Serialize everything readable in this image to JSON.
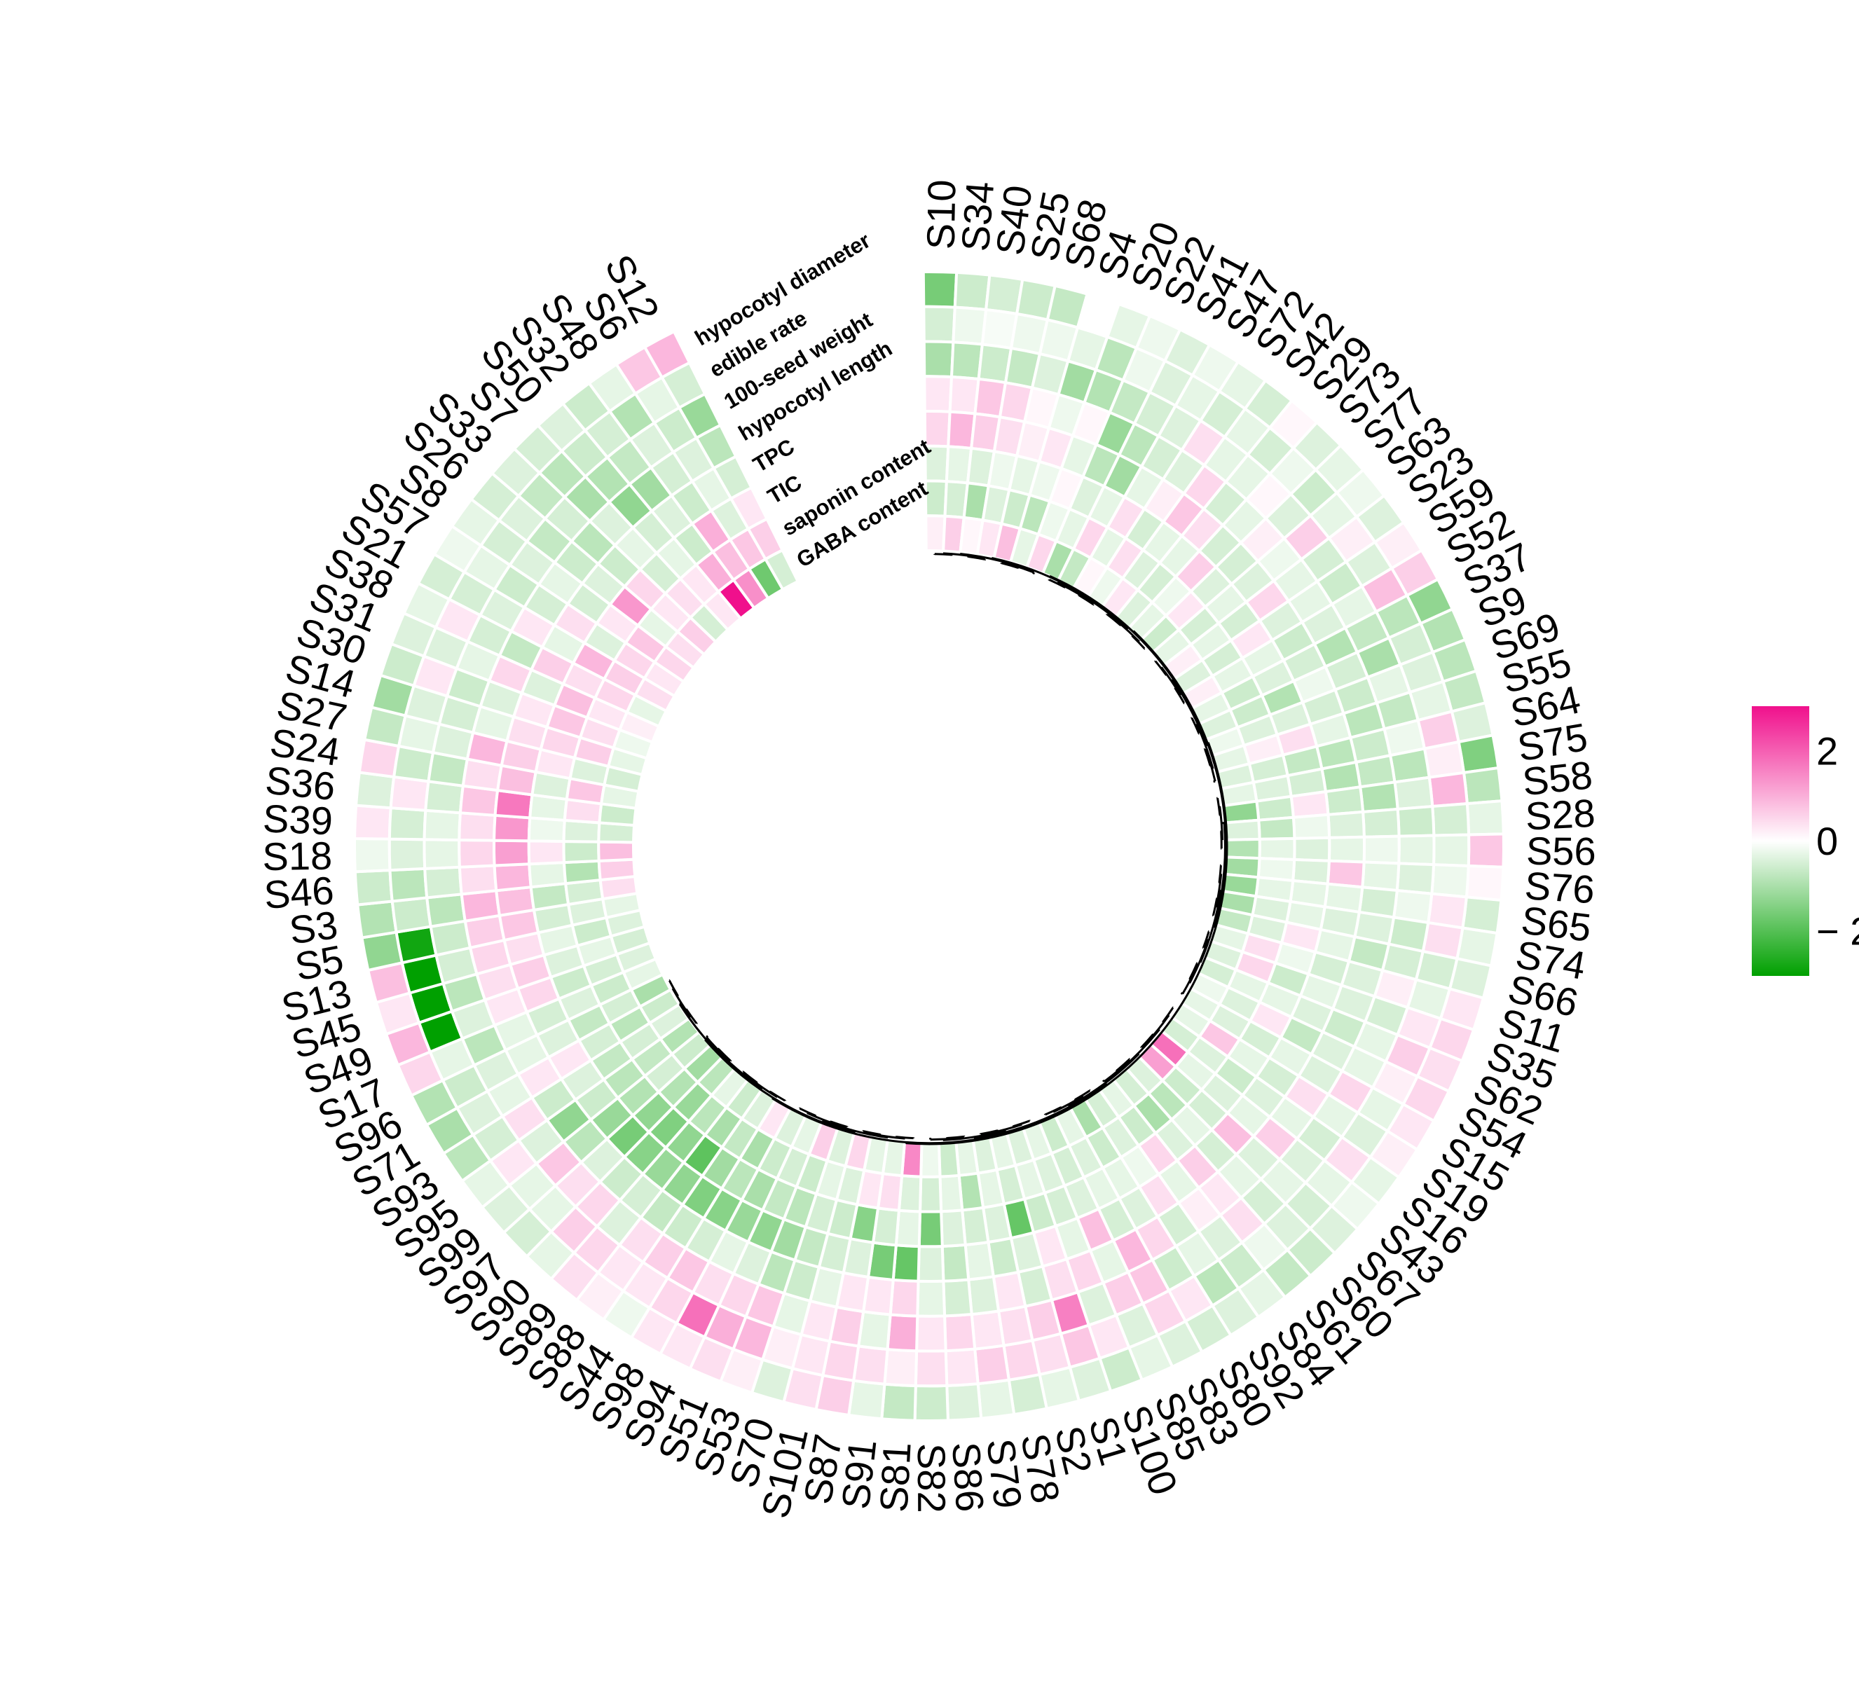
{
  "chart_data": {
    "type": "heatmap",
    "layout": "circular",
    "samples": [
      "S10",
      "S34",
      "S40",
      "S25",
      "S68",
      "S4",
      "S20",
      "S22",
      "S41",
      "S47",
      "S72",
      "S42",
      "S29",
      "S73",
      "S77",
      "S63",
      "S23",
      "S59",
      "S52",
      "S37",
      "S9",
      "S69",
      "S55",
      "S64",
      "S75",
      "S58",
      "S28",
      "S56",
      "S76",
      "S65",
      "S74",
      "S66",
      "S11",
      "S35",
      "S62",
      "S54",
      "S15",
      "S19",
      "S16",
      "S43",
      "S67",
      "S60",
      "S61",
      "S84",
      "S92",
      "S80",
      "S83",
      "S85",
      "S100",
      "S1",
      "S2",
      "S78",
      "S79",
      "S86",
      "S82",
      "S81",
      "S91",
      "S87",
      "S101",
      "S70",
      "S53",
      "S51",
      "S94",
      "S98",
      "S44",
      "S88",
      "S89",
      "S90",
      "S97",
      "S99",
      "S95",
      "S93",
      "S71",
      "S96",
      "S17",
      "S49",
      "S45",
      "S13",
      "S5",
      "S3",
      "S46",
      "S18",
      "S39",
      "S36",
      "S24",
      "S27",
      "S14",
      "S30",
      "S31",
      "S38",
      "S21",
      "S57",
      "S8",
      "S26",
      "S33",
      "S7",
      "S50",
      "S32",
      "S48",
      "S6",
      "S12"
    ],
    "traits": [
      "hypocotyl diameter",
      "edible rate",
      "100-seed weight",
      "hypocotyl length",
      "TPC",
      "TIC",
      "saponin content",
      "GABA content"
    ],
    "values": [
      [
        -1.6,
        -0.5,
        -1.0,
        0.3,
        0.5,
        -0.4,
        -0.6,
        0.2
      ],
      [
        -0.6,
        -0.2,
        -0.8,
        0.3,
        0.9,
        -0.3,
        -0.5,
        0.6
      ],
      [
        -0.5,
        -0.1,
        -0.6,
        0.7,
        0.6,
        -0.4,
        -1.0,
        0.1
      ],
      [
        -0.6,
        -0.2,
        -0.7,
        0.5,
        0.4,
        -0.2,
        -0.4,
        0.3
      ],
      [
        -0.7,
        -0.2,
        -0.4,
        0.1,
        0.2,
        -0.3,
        -0.6,
        0.8
      ],
      [
        0.0,
        -0.3,
        -1.1,
        -0.2,
        0.3,
        -0.2,
        -0.8,
        -0.3
      ],
      [
        -0.3,
        -0.8,
        -0.9,
        0.1,
        -0.3,
        0.1,
        -0.2,
        0.5
      ],
      [
        -0.2,
        -0.2,
        -0.7,
        -1.2,
        -0.8,
        -0.4,
        -0.3,
        -1.0
      ],
      [
        -0.4,
        -0.4,
        -0.5,
        -0.8,
        -1.1,
        -0.3,
        0.5,
        -0.7
      ],
      [
        -0.2,
        -0.3,
        -0.4,
        -0.5,
        -0.3,
        0.4,
        -0.3,
        0.1
      ],
      [
        -0.3,
        -0.5,
        0.4,
        -0.4,
        0.2,
        -0.5,
        0.4,
        -0.2
      ],
      [
        -0.5,
        -0.3,
        -0.3,
        0.5,
        0.7,
        -0.3,
        -0.4,
        0.3
      ],
      [
        0.1,
        -0.5,
        -0.3,
        -0.5,
        0.4,
        -0.3,
        -0.5,
        -0.4
      ],
      [
        -0.4,
        -0.2,
        0.1,
        -0.3,
        -0.5,
        0.6,
        -0.2,
        -0.3
      ],
      [
        -0.3,
        -0.6,
        -0.4,
        0.2,
        -0.5,
        -0.4,
        0.3,
        -0.6
      ],
      [
        -0.2,
        -0.3,
        0.6,
        -0.2,
        -0.4,
        -0.3,
        -0.5,
        -0.3
      ],
      [
        -0.4,
        0.2,
        -0.5,
        -0.3,
        0.5,
        -0.5,
        -0.3,
        0.2
      ],
      [
        0.2,
        -0.4,
        -0.6,
        -0.3,
        -0.4,
        0.3,
        -0.5,
        -0.4
      ],
      [
        0.6,
        0.8,
        -0.3,
        -0.4,
        -0.6,
        -0.3,
        -0.3,
        0.2
      ],
      [
        -1.3,
        -0.8,
        -0.7,
        -0.9,
        -0.5,
        -0.4,
        -0.6,
        -0.3
      ],
      [
        -0.9,
        -0.5,
        -1.0,
        -0.5,
        -0.2,
        -0.9,
        -0.6,
        -0.4
      ],
      [
        -0.8,
        -0.4,
        -0.3,
        -0.6,
        -0.5,
        -0.4,
        -0.4,
        -0.2
      ],
      [
        -0.7,
        -0.3,
        -0.7,
        -0.8,
        -0.3,
        0.4,
        0.2,
        -0.3
      ],
      [
        -0.4,
        0.6,
        -0.2,
        -0.6,
        -0.8,
        -0.7,
        -0.5,
        -0.4
      ],
      [
        -1.5,
        0.2,
        -0.8,
        -0.7,
        -0.9,
        -0.5,
        -0.4,
        -0.3
      ],
      [
        -0.8,
        0.9,
        -0.4,
        -0.9,
        -0.6,
        0.3,
        -0.6,
        -1.3
      ],
      [
        -0.3,
        -0.5,
        -0.6,
        -0.5,
        -0.4,
        -0.2,
        -0.7,
        -0.4
      ],
      [
        0.7,
        -0.3,
        -0.3,
        -0.2,
        -0.3,
        -0.4,
        -0.3,
        -0.9
      ],
      [
        0.1,
        -0.2,
        -0.4,
        -0.3,
        0.7,
        -0.4,
        -0.2,
        -1.1
      ],
      [
        -0.5,
        0.3,
        -0.2,
        -0.5,
        -0.3,
        -0.3,
        -0.3,
        -1.2
      ],
      [
        -0.3,
        0.4,
        -0.6,
        -0.4,
        -0.4,
        -0.3,
        -0.4,
        -1.0
      ],
      [
        -0.4,
        -0.5,
        -0.5,
        -0.7,
        -0.3,
        0.3,
        -0.4,
        -0.7
      ],
      [
        0.3,
        -0.3,
        0.2,
        -0.4,
        -0.5,
        -0.2,
        0.4,
        -0.3
      ],
      [
        0.5,
        0.3,
        -0.5,
        -0.4,
        -0.3,
        -0.6,
        0.5,
        -0.4
      ],
      [
        0.4,
        0.6,
        -0.3,
        -0.6,
        -0.4,
        -0.3,
        -0.3,
        -0.5
      ],
      [
        0.5,
        0.2,
        -0.3,
        -0.4,
        -0.7,
        0.3,
        -0.4,
        -0.2
      ],
      [
        0.3,
        -0.3,
        0.5,
        -0.4,
        -0.3,
        -0.5,
        -0.4,
        -0.3
      ],
      [
        0.2,
        -0.4,
        -0.3,
        0.4,
        -0.5,
        -0.3,
        0.7,
        -0.3
      ],
      [
        -0.3,
        0.4,
        -0.5,
        -0.3,
        -0.4,
        -0.6,
        -0.4,
        -0.5
      ],
      [
        -0.2,
        -0.3,
        -0.4,
        0.6,
        -0.3,
        -0.4,
        -0.3,
        1.8
      ],
      [
        -0.4,
        -0.5,
        -0.3,
        -0.4,
        0.8,
        -0.5,
        -0.6,
        1.2
      ],
      [
        -0.6,
        -0.4,
        -0.5,
        -0.3,
        -0.5,
        -0.3,
        -0.8,
        -0.4
      ],
      [
        -0.7,
        -0.2,
        0.4,
        0.3,
        0.6,
        -0.4,
        -1.0,
        -0.5
      ],
      [
        -0.3,
        -0.6,
        -0.4,
        0.2,
        -0.3,
        0.5,
        -0.6,
        -0.3
      ],
      [
        -0.4,
        -0.8,
        -0.3,
        -0.5,
        0.4,
        -0.2,
        -0.4,
        -0.5
      ],
      [
        -0.5,
        0.3,
        -0.6,
        0.5,
        -0.4,
        -0.3,
        -0.6,
        -1.0
      ],
      [
        -0.4,
        0.5,
        0.7,
        0.9,
        -0.5,
        -0.3,
        -0.4,
        -0.3
      ],
      [
        -0.3,
        -0.4,
        0.6,
        -0.3,
        0.8,
        -0.4,
        -0.5,
        -0.6
      ],
      [
        -0.6,
        0.3,
        -0.4,
        0.5,
        -0.3,
        -0.5,
        -0.4,
        -0.3
      ],
      [
        -0.4,
        0.7,
        1.6,
        0.4,
        0.3,
        -0.6,
        -0.3,
        -0.4
      ],
      [
        -0.3,
        0.4,
        0.6,
        -0.5,
        -0.4,
        -1.8,
        -0.5,
        -0.3
      ],
      [
        -0.5,
        0.5,
        0.4,
        0.3,
        -0.6,
        -0.4,
        -0.3,
        -0.4
      ],
      [
        -0.3,
        0.6,
        0.3,
        -0.4,
        -0.3,
        -0.5,
        -0.9,
        -0.3
      ],
      [
        -0.4,
        0.3,
        0.5,
        -0.5,
        -0.7,
        -0.4,
        -0.3,
        -0.6
      ],
      [
        -0.6,
        0.4,
        0.3,
        -0.3,
        -0.4,
        -1.6,
        -0.5,
        -0.2
      ],
      [
        -0.7,
        0.2,
        1.0,
        0.5,
        -1.8,
        -0.3,
        -0.4,
        1.5
      ],
      [
        -0.3,
        0.4,
        -0.3,
        0.3,
        -1.6,
        -0.5,
        0.4,
        -0.3
      ],
      [
        0.6,
        0.5,
        0.6,
        0.3,
        -0.4,
        -1.4,
        0.3,
        -0.3
      ],
      [
        0.4,
        0.3,
        0.3,
        -0.3,
        -0.5,
        -0.6,
        -0.4,
        0.5
      ],
      [
        -0.4,
        0.2,
        -0.3,
        -0.6,
        -0.7,
        -0.5,
        -0.3,
        -0.4
      ],
      [
        0.2,
        0.9,
        0.7,
        -0.8,
        -1.1,
        -0.8,
        -0.6,
        0.6
      ],
      [
        0.4,
        1.0,
        0.5,
        -0.4,
        -1.3,
        -0.7,
        -0.5,
        -0.3
      ],
      [
        0.3,
        1.8,
        0.4,
        -0.3,
        -1.2,
        -1.0,
        -0.6,
        -0.4
      ],
      [
        0.3,
        0.5,
        0.7,
        -0.5,
        -1.4,
        -0.8,
        -1.0,
        0.3
      ],
      [
        -0.2,
        0.3,
        0.6,
        -0.6,
        -1.5,
        -1.1,
        -0.7,
        -0.4
      ],
      [
        0.2,
        0.3,
        0.4,
        -0.7,
        -1.3,
        -1.9,
        -1.0,
        -0.6
      ],
      [
        0.4,
        0.5,
        -0.4,
        -0.5,
        -1.2,
        -1.3,
        -0.8,
        -0.3
      ],
      [
        -0.3,
        0.6,
        0.5,
        -0.6,
        -1.4,
        -1.5,
        -1.2,
        -0.8
      ],
      [
        -0.5,
        -0.3,
        0.4,
        -0.4,
        -1.6,
        -1.3,
        -0.9,
        -1.1
      ],
      [
        -0.4,
        -0.3,
        0.7,
        -0.8,
        -1.2,
        -0.9,
        -0.5,
        -0.6
      ],
      [
        -0.3,
        0.3,
        -0.4,
        -1.3,
        -0.6,
        -0.8,
        -0.7,
        -0.9
      ],
      [
        -0.8,
        -0.5,
        0.4,
        -0.6,
        -0.4,
        -0.7,
        -0.5,
        -0.4
      ],
      [
        -1.0,
        -0.4,
        -0.3,
        0.3,
        0.3,
        -0.5,
        -0.8,
        -0.6
      ],
      [
        -0.9,
        -0.6,
        -0.4,
        -0.3,
        -0.4,
        -0.7,
        -0.5,
        -1.0
      ],
      [
        0.5,
        -0.3,
        -0.8,
        -0.3,
        -0.5,
        -0.4,
        -0.6,
        -0.3
      ],
      [
        0.9,
        -3.2,
        -0.4,
        0.3,
        0.5,
        -0.6,
        -0.5,
        -0.4
      ],
      [
        0.3,
        -3.4,
        -0.8,
        0.4,
        0.6,
        -0.4,
        -0.3,
        -0.5
      ],
      [
        0.8,
        -3.3,
        -0.5,
        0.5,
        0.4,
        -0.3,
        -0.6,
        -0.4
      ],
      [
        -1.3,
        -2.8,
        -0.6,
        0.6,
        0.7,
        -0.5,
        -0.4,
        -0.3
      ],
      [
        -0.9,
        -0.6,
        -0.8,
        0.9,
        0.8,
        -0.7,
        -0.5,
        0.4
      ],
      [
        -0.6,
        -0.8,
        -0.5,
        0.4,
        0.9,
        -0.3,
        -0.9,
        0.6
      ],
      [
        -0.2,
        -0.4,
        -0.3,
        0.5,
        1.2,
        0.3,
        -0.6,
        0.8
      ],
      [
        0.3,
        -0.5,
        -0.3,
        0.4,
        1.3,
        -0.2,
        -0.4,
        -0.5
      ],
      [
        -0.4,
        0.3,
        -0.5,
        0.7,
        1.7,
        -0.3,
        0.4,
        -0.6
      ],
      [
        0.5,
        -0.6,
        -0.7,
        0.4,
        0.8,
        -0.4,
        0.7,
        -0.3
      ],
      [
        -0.7,
        -0.3,
        -0.4,
        0.9,
        0.6,
        0.3,
        -0.4,
        -0.5
      ],
      [
        -1.1,
        -0.4,
        -0.5,
        -0.3,
        0.4,
        0.5,
        0.6,
        -0.3
      ],
      [
        -0.6,
        0.3,
        -0.6,
        -0.4,
        0.3,
        0.7,
        0.4,
        -0.2
      ],
      [
        -0.4,
        -0.4,
        -0.3,
        0.5,
        -0.4,
        0.8,
        0.3,
        0.2
      ],
      [
        -0.3,
        0.3,
        -0.5,
        -0.7,
        0.6,
        0.4,
        0.5,
        -0.3
      ],
      [
        -0.5,
        -0.5,
        -0.4,
        0.3,
        -0.3,
        0.9,
        0.6,
        0.4
      ],
      [
        -0.2,
        -0.3,
        -0.6,
        -0.5,
        0.4,
        -0.4,
        0.5,
        0.3
      ],
      [
        -0.3,
        -0.5,
        -0.4,
        -0.3,
        -0.5,
        0.3,
        0.7,
        0.5
      ],
      [
        -0.5,
        -0.4,
        -0.7,
        -0.6,
        -0.4,
        1.3,
        -0.3,
        0.4
      ],
      [
        -0.4,
        -0.7,
        -0.5,
        -0.8,
        -0.6,
        0.5,
        0.3,
        0.6
      ],
      [
        -0.5,
        -0.8,
        -1.0,
        -0.4,
        -0.3,
        -0.5,
        0.4,
        -0.5
      ],
      [
        -0.4,
        -0.6,
        -0.9,
        -1.3,
        -0.5,
        -0.3,
        0.3,
        0.3
      ],
      [
        -0.6,
        -0.5,
        -0.7,
        -1.1,
        -0.4,
        -0.6,
        1.0,
        3.0
      ],
      [
        -0.3,
        -0.9,
        -0.4,
        -0.5,
        -0.6,
        1.0,
        0.8,
        1.4
      ],
      [
        0.7,
        -0.3,
        -0.6,
        -0.4,
        -0.3,
        -0.4,
        0.7,
        -1.7
      ],
      [
        0.9,
        -0.5,
        -1.2,
        -0.8,
        -0.5,
        0.3,
        0.6,
        -0.5
      ]
    ],
    "color_scale": {
      "min": -3,
      "mid": 0,
      "max": 3,
      "low": "#00a000",
      "mid_color": "#ffffff",
      "high": "#f0108c"
    },
    "legend": {
      "ticks": [
        2,
        0,
        -2
      ],
      "tick_labels": [
        "2",
        "0",
        "− 2"
      ],
      "position": "right"
    },
    "dendrogram": "(((((((S10,S34),(S40,S25)),((S68,S4),S20)),(((S22,S41),(S47,S72)),((S42,S29),(S73,S77)))),(((S63,S23),(S59,S52)),((S37,S9),((S69,S55),S64)))),(((S75,S58),(S28,S56)),(((S76,S65),(S74,S66)),((S11,S35),((S62,S54),S15))))),((((((S19,S16),(S43,S67)),((S60,S61),S84)),((S92,S80),(S83,S85))),(((S100,S1),(S2,S78)),((S79,S86),S82))),((((S81,S91),(S87,S101)),((S70,S53),(S51,S94))),((((S98,S44),(S88,S89)),((S90,S97),S99)),((S95,S93),(S71,S96)))))),((((S17,S49),(S45,S13)),((S5,S3),(S46,S18))),(((S39,S36),(S24,S27)),(((S14,S30),(S31,S38)),(((S21,S57),(S8,S26)),(((S33,S7),(S50,S32)),((S48,S6),S12)))))));"
  }
}
